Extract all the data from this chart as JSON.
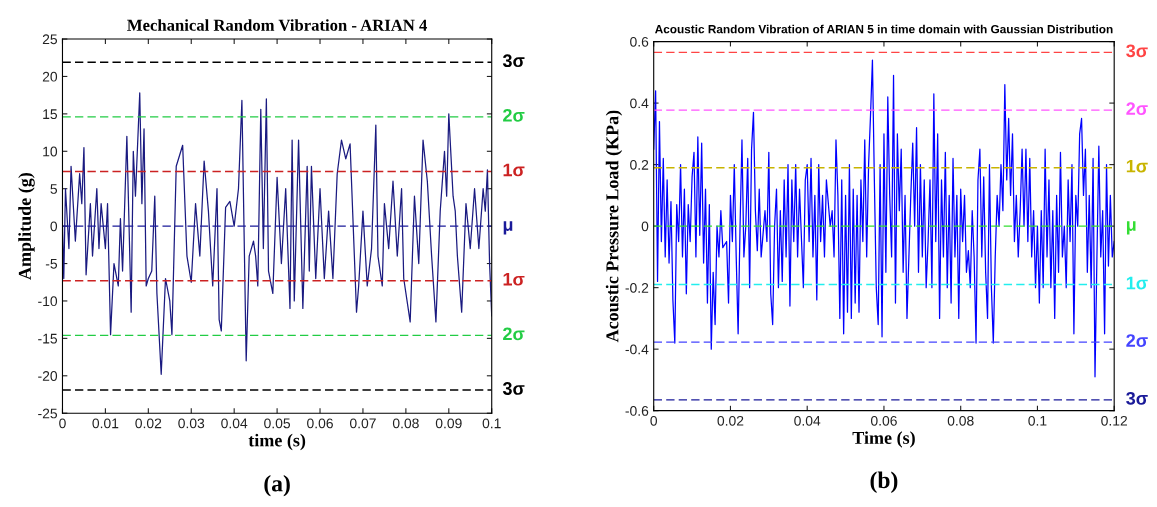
{
  "chart_data": [
    {
      "type": "line",
      "title": "Mechanical Random Vibration - ARIAN 4",
      "xlabel": "time (s)",
      "ylabel": "Amplitude (g)",
      "annotations": [
        "(a)"
      ],
      "x": [
        0,
        0.0003,
        0.0007,
        0.0015,
        0.002,
        0.003,
        0.004,
        0.0045,
        0.005,
        0.0055,
        0.0065,
        0.007,
        0.008,
        0.0085,
        0.009,
        0.01,
        0.0105,
        0.0112,
        0.012,
        0.013,
        0.0135,
        0.014,
        0.015,
        0.016,
        0.0165,
        0.017,
        0.018,
        0.0185,
        0.019,
        0.0195,
        0.02,
        0.0208,
        0.0215,
        0.022,
        0.023,
        0.024,
        0.025,
        0.0255,
        0.0265,
        0.028,
        0.029,
        0.03,
        0.031,
        0.032,
        0.033,
        0.034,
        0.035,
        0.036,
        0.0365,
        0.037,
        0.038,
        0.039,
        0.04,
        0.041,
        0.0418,
        0.0428,
        0.0435,
        0.0445,
        0.045,
        0.0455,
        0.0462,
        0.0468,
        0.0475,
        0.048,
        0.049,
        0.05,
        0.051,
        0.052,
        0.053,
        0.0535,
        0.054,
        0.055,
        0.056,
        0.057,
        0.0575,
        0.058,
        0.059,
        0.06,
        0.061,
        0.062,
        0.063,
        0.064,
        0.065,
        0.066,
        0.067,
        0.0685,
        0.069,
        0.07,
        0.071,
        0.072,
        0.073,
        0.0735,
        0.0745,
        0.075,
        0.076,
        0.077,
        0.078,
        0.079,
        0.0795,
        0.081,
        0.082,
        0.083,
        0.084,
        0.085,
        0.086,
        0.087,
        0.088,
        0.089,
        0.0895,
        0.09,
        0.091,
        0.0915,
        0.092,
        0.093,
        0.094,
        0.095,
        0.096,
        0.097,
        0.098,
        0.0985,
        0.099,
        0.0995,
        0.1
      ],
      "series": [
        {
          "color": "#1a1a80",
          "values": [
            0,
            -7,
            5,
            -3,
            8,
            -2,
            7,
            3,
            10.5,
            -6.5,
            3,
            -4,
            5,
            -3,
            3,
            -3,
            3,
            -14.5,
            -5,
            -8,
            1,
            -6,
            12,
            -11.5,
            10,
            4,
            17.8,
            3,
            13,
            -8,
            -7,
            -6,
            4,
            -9,
            -19.8,
            -7,
            -10,
            -14.5,
            8,
            10.8,
            -4,
            -7.5,
            3,
            -4,
            8.7,
            2,
            -8,
            5,
            -12.5,
            -14,
            2.5,
            3.3,
            0,
            5,
            16.8,
            -18,
            -4,
            -2,
            -4,
            -8,
            15.6,
            -3,
            17,
            -6,
            -9,
            6.5,
            -5,
            5,
            -11,
            11.5,
            -10,
            11.5,
            -11,
            8,
            -6,
            8,
            -7,
            5,
            -7,
            2,
            -7,
            7,
            11.5,
            9,
            11,
            -11.5,
            -8,
            2,
            -8,
            -3,
            13.5,
            -4,
            -8,
            3,
            -3,
            6,
            -4,
            5,
            -7,
            -12.8,
            4,
            -5,
            11.5,
            6,
            -4,
            -12.8,
            2,
            10,
            4,
            15,
            4,
            2,
            -4,
            -11.5,
            3,
            -3,
            5,
            -3,
            5,
            2,
            7.5,
            -5,
            -12
          ]
        }
      ],
      "xlim": [
        0,
        0.1
      ],
      "xticks": [
        0,
        0.01,
        0.02,
        0.03,
        0.04,
        0.05,
        0.06,
        0.07,
        0.08,
        0.09,
        0.1
      ],
      "ylim": [
        -25,
        25
      ],
      "yticks": [
        -25,
        -20,
        -15,
        -10,
        -5,
        0,
        5,
        10,
        15,
        20,
        25
      ],
      "ref_lines": [
        {
          "axis": "y",
          "value": 21.9,
          "label": "3σ",
          "color": "#000000",
          "line_style": "dashed"
        },
        {
          "axis": "y",
          "value": 14.6,
          "label": "2σ",
          "color": "#22cc44",
          "line_style": "dashed"
        },
        {
          "axis": "y",
          "value": 7.3,
          "label": "1σ",
          "color": "#cc2222",
          "line_style": "dashed"
        },
        {
          "axis": "y",
          "value": 0,
          "label": "μ",
          "color": "#1a1a99",
          "line_style": "dashed"
        },
        {
          "axis": "y",
          "value": -7.3,
          "label": "1σ",
          "color": "#cc2222",
          "line_style": "dashed"
        },
        {
          "axis": "y",
          "value": -14.6,
          "label": "2σ",
          "color": "#22cc44",
          "line_style": "dashed"
        },
        {
          "axis": "y",
          "value": -21.9,
          "label": "3σ",
          "color": "#000000",
          "line_style": "dashed"
        }
      ]
    },
    {
      "type": "line",
      "title": "Acoustic Random Vibration of ARIAN 5 in time domain with Gaussian Distribution",
      "xlabel": "Time (s)",
      "ylabel": "Acoustic Pressure Load (KPa)",
      "annotations": [
        "(b)"
      ],
      "x": [
        0,
        0.0005,
        0.001,
        0.0015,
        0.002,
        0.0025,
        0.003,
        0.0035,
        0.004,
        0.0045,
        0.005,
        0.0055,
        0.006,
        0.0065,
        0.007,
        0.0075,
        0.008,
        0.0085,
        0.009,
        0.0095,
        0.01,
        0.0105,
        0.011,
        0.0115,
        0.012,
        0.0125,
        0.013,
        0.0135,
        0.014,
        0.0145,
        0.015,
        0.0155,
        0.016,
        0.0165,
        0.017,
        0.0175,
        0.018,
        0.019,
        0.0195,
        0.02,
        0.0205,
        0.021,
        0.0215,
        0.022,
        0.0225,
        0.023,
        0.0235,
        0.024,
        0.0245,
        0.025,
        0.0255,
        0.026,
        0.0265,
        0.027,
        0.0275,
        0.028,
        0.029,
        0.0295,
        0.03,
        0.0305,
        0.031,
        0.0315,
        0.032,
        0.0325,
        0.033,
        0.0335,
        0.034,
        0.0345,
        0.035,
        0.0355,
        0.036,
        0.0365,
        0.037,
        0.0375,
        0.038,
        0.039,
        0.0395,
        0.04,
        0.0405,
        0.041,
        0.0415,
        0.042,
        0.0425,
        0.043,
        0.0435,
        0.044,
        0.0445,
        0.045,
        0.046,
        0.0465,
        0.047,
        0.0475,
        0.048,
        0.0485,
        0.049,
        0.0495,
        0.05,
        0.0505,
        0.051,
        0.0515,
        0.052,
        0.0525,
        0.053,
        0.0535,
        0.054,
        0.0545,
        0.055,
        0.0555,
        0.056,
        0.0565,
        0.057,
        0.0575,
        0.058,
        0.0585,
        0.059,
        0.0595,
        0.06,
        0.0605,
        0.061,
        0.0615,
        0.062,
        0.0625,
        0.063,
        0.0635,
        0.064,
        0.0645,
        0.065,
        0.0655,
        0.066,
        0.0665,
        0.067,
        0.0675,
        0.068,
        0.0685,
        0.069,
        0.0695,
        0.07,
        0.0705,
        0.071,
        0.0715,
        0.072,
        0.0725,
        0.073,
        0.0735,
        0.074,
        0.0745,
        0.075,
        0.0755,
        0.076,
        0.0765,
        0.077,
        0.0775,
        0.078,
        0.0785,
        0.079,
        0.0795,
        0.08,
        0.0805,
        0.081,
        0.0815,
        0.082,
        0.0825,
        0.083,
        0.0835,
        0.084,
        0.0845,
        0.085,
        0.0855,
        0.086,
        0.0865,
        0.087,
        0.0875,
        0.088,
        0.0885,
        0.089,
        0.0895,
        0.09,
        0.0905,
        0.091,
        0.0915,
        0.092,
        0.0925,
        0.093,
        0.0935,
        0.094,
        0.0945,
        0.095,
        0.0955,
        0.096,
        0.0965,
        0.097,
        0.0975,
        0.098,
        0.0985,
        0.099,
        0.0995,
        0.1,
        0.1005,
        0.101,
        0.1015,
        0.102,
        0.1025,
        0.103,
        0.1035,
        0.104,
        0.1045,
        0.105,
        0.1055,
        0.106,
        0.1065,
        0.107,
        0.1075,
        0.108,
        0.1085,
        0.109,
        0.1095,
        0.11,
        0.1105,
        0.111,
        0.1115,
        0.112,
        0.1125,
        0.113,
        0.1135,
        0.114,
        0.1145,
        0.115,
        0.1155,
        0.116,
        0.1165,
        0.117,
        0.1175,
        0.118,
        0.1185,
        0.119,
        0.1195,
        0.12
      ],
      "series": [
        {
          "color": "#0000ff",
          "values": [
            0.25,
            0.44,
            -0.18,
            0.34,
            -0.05,
            0.22,
            -0.1,
            0.15,
            -0.12,
            0.08,
            -0.24,
            -0.38,
            0.07,
            -0.05,
            0.2,
            -0.1,
            0.12,
            -0.22,
            0.07,
            -0.05,
            0.16,
            0.24,
            -0.1,
            0.29,
            -0.03,
            0.27,
            -0.12,
            0.12,
            -0.25,
            0.07,
            -0.4,
            -0.15,
            -0.32,
            0,
            -0.1,
            0.05,
            -0.07,
            -0.05,
            -0.25,
            0.1,
            -0.05,
            0.2,
            -0.1,
            -0.35,
            0,
            0.28,
            -0.1,
            0,
            0.22,
            -0.2,
            0.25,
            0.37,
            0.05,
            -0.08,
            0.12,
            -0.1,
            0.05,
            -0.05,
            0.24,
            -0.22,
            -0.32,
            0,
            0.12,
            -0.2,
            0.05,
            -0.18,
            0.15,
            -0.1,
            0.2,
            -0.26,
            0.15,
            -0.05,
            0.2,
            -0.1,
            0.12,
            -0.2,
            0.15,
            0.2,
            -0.05,
            0.22,
            -0.1,
            0.1,
            -0.24,
            0.2,
            -0.05,
            0.1,
            -0.1,
            0.15,
            0,
            0.05,
            -0.1,
            0.28,
            0.1,
            -0.3,
            0.15,
            -0.35,
            0.1,
            -0.28,
            0.2,
            -0.3,
            0.12,
            -0.25,
            0.1,
            -0.28,
            0.15,
            -0.05,
            0.28,
            -0.1,
            0.2,
            0.36,
            0.54,
            0.15,
            -0.2,
            -0.32,
            0.2,
            -0.36,
            0.3,
            -0.15,
            0.42,
            0.1,
            -0.1,
            0.49,
            -0.25,
            0.3,
            0.05,
            0.25,
            -0.15,
            0.1,
            -0.3,
            -0.1,
            0.1,
            0.27,
            0,
            0.32,
            -0.15,
            0.2,
            -0.1,
            0.15,
            -0.2,
            -0.05,
            0.15,
            -0.2,
            0.43,
            -0.05,
            0.3,
            -0.3,
            0.15,
            -0.1,
            0.24,
            -0.2,
            0.1,
            -0.25,
            0.22,
            -0.1,
            0.1,
            -0.3,
            0.12,
            -0.05,
            0.1,
            -0.15,
            -0.08,
            -0.2,
            0.05,
            -0.1,
            -0.38,
            0.15,
            0.25,
            -0.1,
            0.16,
            -0.15,
            -0.3,
            0.2,
            -0.2,
            -0.38,
            -0.1,
            0.1,
            0,
            0.2,
            0.05,
            0.46,
            0.15,
            0.35,
            0.1,
            0.3,
            -0.05,
            0.1,
            -0.1,
            0.05,
            0.25,
            0,
            0.25,
            -0.05,
            0.22,
            -0.1,
            0.05,
            -0.2,
            0,
            -0.25,
            0.05,
            -0.2,
            0.25,
            -0.1,
            0.15,
            -0.2,
            0.05,
            -0.3,
            0.1,
            -0.15,
            0.24,
            -0.1,
            0,
            -0.2,
            0.15,
            -0.05,
            0.2,
            -0.35,
            0.1,
            0,
            0.3,
            0.35,
            0.1,
            0.25,
            -0.15,
            0.1,
            -0.2,
            0.22,
            -0.49,
            -0.1,
            0.26,
            -0.1,
            0.05,
            -0.35,
            0.2,
            -0.13,
            0.1,
            -0.1,
            -0.05
          ]
        }
      ],
      "xlim": [
        0,
        0.12
      ],
      "xticks": [
        0,
        0.02,
        0.04,
        0.06,
        0.08,
        0.1,
        0.12
      ],
      "ylim": [
        -0.6,
        0.6
      ],
      "yticks": [
        -0.6,
        -0.4,
        -0.2,
        0,
        0.2,
        0.4,
        0.6
      ],
      "ref_lines": [
        {
          "axis": "y",
          "value": 0.565,
          "label": "3σ",
          "color": "#ff4444",
          "line_style": "dashed"
        },
        {
          "axis": "y",
          "value": 0.377,
          "label": "2σ",
          "color": "#ff55ff",
          "line_style": "dashed"
        },
        {
          "axis": "y",
          "value": 0.19,
          "label": "1σ",
          "color": "#c8b400",
          "line_style": "dashed"
        },
        {
          "axis": "y",
          "value": 0,
          "label": "μ",
          "color": "#33dd33",
          "line_style": "dashed"
        },
        {
          "axis": "y",
          "value": -0.19,
          "label": "1σ",
          "color": "#22eeee",
          "line_style": "dashed"
        },
        {
          "axis": "y",
          "value": -0.377,
          "label": "2σ",
          "color": "#4444ff",
          "line_style": "dashed"
        },
        {
          "axis": "y",
          "value": -0.565,
          "label": "3σ",
          "color": "#1a1a99",
          "line_style": "dashed"
        }
      ]
    }
  ]
}
